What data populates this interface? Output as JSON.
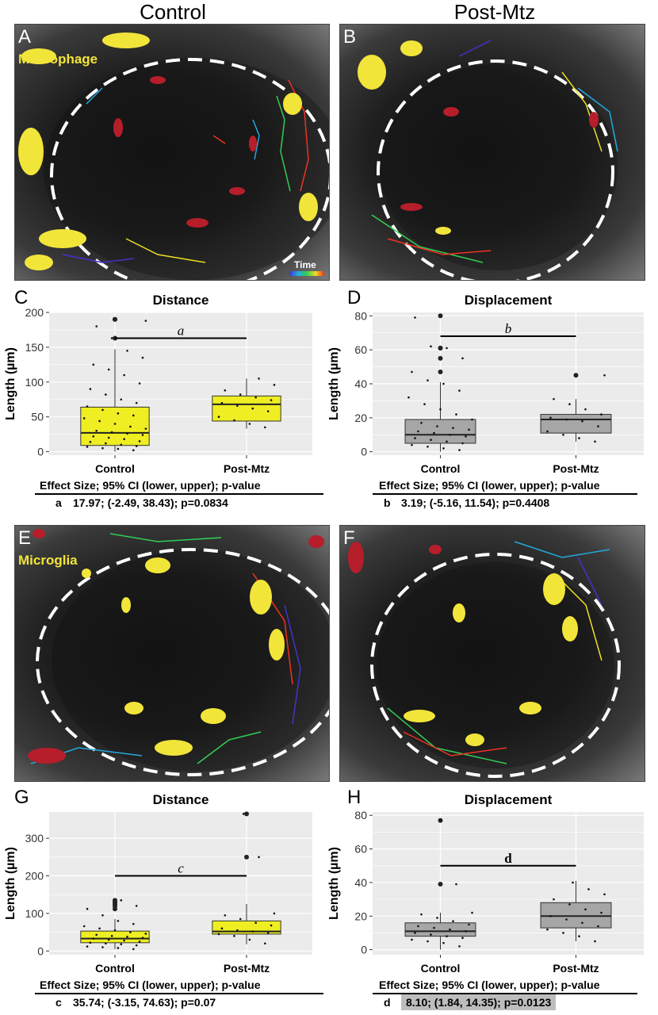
{
  "column_titles": {
    "left": "Control",
    "right": "Post-Mtz"
  },
  "micrographs": {
    "A": {
      "letter": "A",
      "cell_label": "Macrophage",
      "time_label": "Time"
    },
    "B": {
      "letter": "B"
    },
    "E": {
      "letter": "E",
      "cell_label": "Microglia"
    },
    "F": {
      "letter": "F"
    }
  },
  "colors": {
    "yellow_box": "#eeee22",
    "gray_box": "#a6a6a6",
    "panel_bg": "#ebebeb",
    "grid": "#ffffff"
  },
  "chart_data": [
    {
      "panel": "C",
      "type": "boxplot",
      "title": "Distance",
      "ylabel": "Length (µm)",
      "categories": [
        "Control",
        "Post-Mtz"
      ],
      "ylim": [
        -5,
        200
      ],
      "yticks": [
        0,
        50,
        100,
        150,
        200
      ],
      "box_color": "#eeee22",
      "boxes": [
        {
          "group": "Control",
          "q1": 9,
          "median": 27,
          "q3": 64,
          "whisker_low": 0,
          "whisker_high": 147,
          "outliers": [
            163,
            190,
            190
          ]
        },
        {
          "group": "Post-Mtz",
          "q1": 44,
          "median": 68,
          "q3": 80,
          "whisker_low": 33,
          "whisker_high": 105,
          "outliers": []
        }
      ],
      "points": {
        "Control": [
          2,
          4,
          5,
          7,
          8,
          10,
          12,
          14,
          15,
          18,
          20,
          22,
          24,
          26,
          28,
          30,
          33,
          36,
          40,
          44,
          48,
          52,
          55,
          60,
          65,
          70,
          75,
          82,
          90,
          98,
          110,
          118,
          125,
          135,
          145,
          163,
          180,
          188
        ],
        "Post-Mtz": [
          35,
          40,
          45,
          50,
          58,
          62,
          66,
          70,
          74,
          78,
          82,
          88,
          96,
          105
        ]
      },
      "significance": {
        "label": "a",
        "y": 163
      },
      "effect_size": {
        "header": "Effect Size; 95% CI (lower, upper); p-value",
        "key": "a",
        "text": "17.97; (-2.49, 38.43); p=0.0834",
        "highlight": false
      }
    },
    {
      "panel": "D",
      "type": "boxplot",
      "title": "Displacement",
      "ylabel": "Length (µm)",
      "categories": [
        "Control",
        "Post-Mtz"
      ],
      "ylim": [
        -2,
        82
      ],
      "yticks": [
        0,
        20,
        40,
        60,
        80
      ],
      "box_color": "#a6a6a6",
      "boxes": [
        {
          "group": "Control",
          "q1": 5,
          "median": 10,
          "q3": 19,
          "whisker_low": 0,
          "whisker_high": 41,
          "outliers": [
            47,
            55,
            61,
            61,
            80
          ]
        },
        {
          "group": "Post-Mtz",
          "q1": 11,
          "median": 19,
          "q3": 22,
          "whisker_low": 6,
          "whisker_high": 31,
          "outliers": [
            45
          ]
        }
      ],
      "points": {
        "Control": [
          1,
          2,
          3,
          4,
          5,
          6,
          7,
          8,
          9,
          10,
          11,
          12,
          13,
          14,
          15,
          17,
          19,
          22,
          25,
          28,
          32,
          36,
          40,
          42,
          47,
          55,
          61,
          62,
          79
        ],
        "Post-Mtz": [
          6,
          8,
          10,
          12,
          15,
          18,
          19,
          20,
          22,
          25,
          28,
          31,
          45
        ]
      },
      "significance": {
        "label": "b",
        "y": 68
      },
      "effect_size": {
        "header": "Effect Size; 95% CI (lower, upper); p-value",
        "key": "b",
        "text": "3.19; (-5.16, 11.54); p=0.4408",
        "highlight": false
      }
    },
    {
      "panel": "G",
      "type": "boxplot",
      "title": "Distance",
      "ylabel": "Length (µm)",
      "categories": [
        "Control",
        "Post-Mtz"
      ],
      "ylim": [
        -10,
        370
      ],
      "yticks": [
        0,
        100,
        200,
        300
      ],
      "box_color": "#eeee22",
      "boxes": [
        {
          "group": "Control",
          "q1": 22,
          "median": 33,
          "q3": 53,
          "whisker_low": 5,
          "whisker_high": 85,
          "outliers": [
            112,
            120,
            125,
            130,
            135
          ]
        },
        {
          "group": "Post-Mtz",
          "q1": 45,
          "median": 52,
          "q3": 80,
          "whisker_low": 18,
          "whisker_high": 125,
          "outliers": [
            250,
            365
          ]
        }
      ],
      "points": {
        "Control": [
          5,
          8,
          10,
          12,
          15,
          18,
          20,
          22,
          25,
          28,
          30,
          33,
          35,
          38,
          40,
          43,
          46,
          50,
          55,
          60,
          66,
          72,
          80,
          95,
          112,
          120,
          135
        ],
        "Post-Mtz": [
          20,
          30,
          40,
          45,
          48,
          52,
          55,
          60,
          68,
          75,
          85,
          95,
          100,
          250,
          365
        ]
      },
      "significance": {
        "label": "c",
        "y": 200
      },
      "effect_size": {
        "header": "Effect Size; 95% CI (lower, upper); p-value",
        "key": "c",
        "text": "35.74; (-3.15, 74.63); p=0.07",
        "highlight": false
      }
    },
    {
      "panel": "H",
      "type": "boxplot",
      "title": "Displacement",
      "ylabel": "Length (µm)",
      "categories": [
        "Control",
        "Post-Mtz"
      ],
      "ylim": [
        -3,
        82
      ],
      "yticks": [
        0,
        20,
        40,
        60,
        80
      ],
      "box_color": "#a6a6a6",
      "boxes": [
        {
          "group": "Control",
          "q1": 8,
          "median": 11,
          "q3": 16,
          "whisker_low": 0,
          "whisker_high": 22,
          "outliers": [
            39,
            77
          ]
        },
        {
          "group": "Post-Mtz",
          "q1": 13,
          "median": 20,
          "q3": 28,
          "whisker_low": 5,
          "whisker_high": 41,
          "outliers": []
        }
      ],
      "points": {
        "Control": [
          2,
          4,
          5,
          6,
          7,
          8,
          9,
          10,
          11,
          12,
          13,
          14,
          15,
          17,
          19,
          21,
          22,
          39,
          77
        ],
        "Post-Mtz": [
          5,
          8,
          10,
          12,
          14,
          16,
          18,
          20,
          22,
          24,
          27,
          30,
          33,
          36,
          40
        ]
      },
      "significance": {
        "label": "d",
        "y": 50
      },
      "effect_size": {
        "header": "Effect Size; 95% CI (lower, upper); p-value",
        "key": "d",
        "text": "8.10; (1.84, 14.35); p=0.0123",
        "highlight": true
      }
    }
  ]
}
